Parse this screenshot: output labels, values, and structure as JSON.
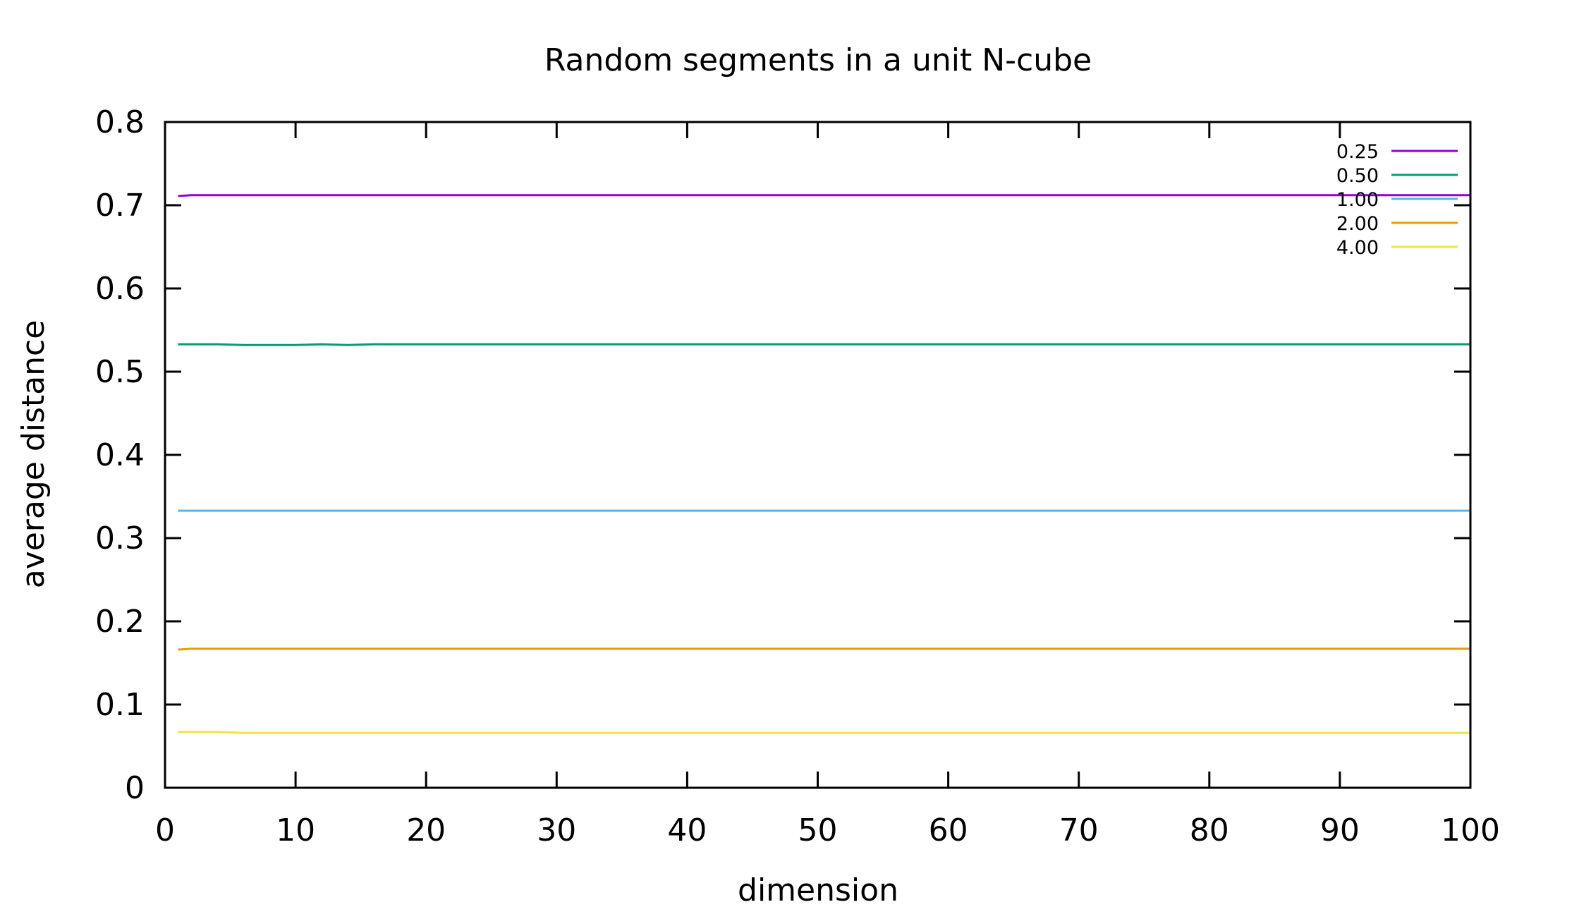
{
  "chart_data": {
    "type": "line",
    "title": "Random segments in a unit N-cube",
    "xlabel": "dimension",
    "ylabel": "average distance",
    "xlim": [
      0,
      100
    ],
    "ylim": [
      0,
      0.8
    ],
    "xticks": [
      0,
      10,
      20,
      30,
      40,
      50,
      60,
      70,
      80,
      90,
      100
    ],
    "xtick_labels": [
      "0",
      "10",
      "20",
      "30",
      "40",
      "50",
      "60",
      "70",
      "80",
      "90",
      "100"
    ],
    "yticks": [
      0,
      0.1,
      0.2,
      0.3,
      0.4,
      0.5,
      0.6,
      0.7,
      0.8
    ],
    "ytick_labels": [
      "0",
      "0.1",
      "0.2",
      "0.3",
      "0.4",
      "0.5",
      "0.6",
      "0.7",
      "0.8"
    ],
    "grid": false,
    "legend_position": "top-right",
    "series": [
      {
        "name": "0.25",
        "color": "#9400d3",
        "x": [
          1,
          2,
          4,
          6,
          10,
          15,
          20,
          30,
          40,
          50,
          60,
          70,
          80,
          90,
          100
        ],
        "y": [
          0.711,
          0.712,
          0.712,
          0.712,
          0.712,
          0.712,
          0.712,
          0.712,
          0.712,
          0.712,
          0.712,
          0.712,
          0.712,
          0.712,
          0.712
        ]
      },
      {
        "name": "0.50",
        "color": "#009e73",
        "x": [
          1,
          2,
          4,
          6,
          10,
          12,
          14,
          16,
          20,
          30,
          40,
          50,
          60,
          70,
          80,
          90,
          100
        ],
        "y": [
          0.533,
          0.533,
          0.533,
          0.532,
          0.532,
          0.533,
          0.532,
          0.533,
          0.533,
          0.533,
          0.533,
          0.533,
          0.533,
          0.533,
          0.533,
          0.533,
          0.533
        ]
      },
      {
        "name": "1.00",
        "color": "#56b4e9",
        "x": [
          1,
          2,
          4,
          6,
          10,
          15,
          20,
          30,
          40,
          50,
          60,
          70,
          80,
          90,
          100
        ],
        "y": [
          0.333,
          0.333,
          0.333,
          0.333,
          0.333,
          0.333,
          0.333,
          0.333,
          0.333,
          0.333,
          0.333,
          0.333,
          0.333,
          0.333,
          0.333
        ]
      },
      {
        "name": "2.00",
        "color": "#e69f00",
        "x": [
          1,
          2,
          4,
          6,
          10,
          15,
          20,
          30,
          40,
          50,
          60,
          70,
          80,
          90,
          100
        ],
        "y": [
          0.166,
          0.167,
          0.167,
          0.167,
          0.167,
          0.167,
          0.167,
          0.167,
          0.167,
          0.167,
          0.167,
          0.167,
          0.167,
          0.167,
          0.167
        ]
      },
      {
        "name": "4.00",
        "color": "#f0e442",
        "x": [
          1,
          2,
          4,
          6,
          10,
          15,
          20,
          30,
          40,
          50,
          60,
          70,
          80,
          90,
          100
        ],
        "y": [
          0.067,
          0.067,
          0.067,
          0.066,
          0.066,
          0.066,
          0.066,
          0.066,
          0.066,
          0.066,
          0.066,
          0.066,
          0.066,
          0.066,
          0.066
        ]
      }
    ]
  }
}
